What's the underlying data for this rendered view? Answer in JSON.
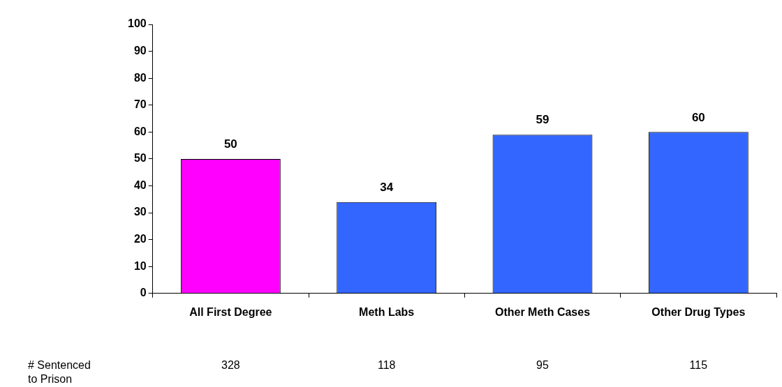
{
  "chart_data": {
    "type": "bar",
    "categories": [
      "All First Degree",
      "Meth Labs",
      "Other Meth Cases",
      "Other Drug Types"
    ],
    "values": [
      50,
      34,
      59,
      60
    ],
    "colors": [
      "#ff00ff",
      "#3366ff",
      "#3366ff",
      "#3366ff"
    ],
    "ylim": [
      0,
      100
    ],
    "yticks": [
      0,
      10,
      20,
      30,
      40,
      50,
      60,
      70,
      80,
      90,
      100
    ],
    "grid": false,
    "legend": false,
    "data_labels": true,
    "annotations": [
      "# Sentenced\nto Prison",
      "328",
      "118",
      "95",
      "115"
    ]
  }
}
